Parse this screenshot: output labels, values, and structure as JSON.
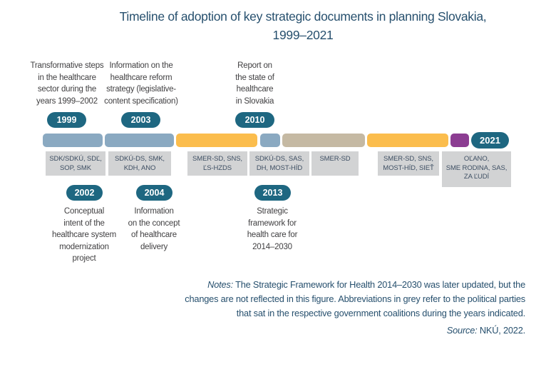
{
  "title": {
    "line1": "Timeline of adoption of key strategic documents in planning Slovakia,",
    "line2": "1999–2021"
  },
  "colors": {
    "title_text": "#27506E",
    "badge_teal": "#1E6781",
    "segment_blue": "#8AA9C1",
    "segment_orange": "#FBBD4D",
    "segment_tan": "#C5B9A3",
    "segment_purple": "#8C3D92",
    "party_box_grey": "#D2D3D4",
    "party_text": "#3E4F63",
    "annotation_text": "#414042"
  },
  "top_events": [
    {
      "year": "1999",
      "lines": [
        "Transformative steps",
        "in the healthcare",
        "sector during the",
        "years 1999–2002"
      ]
    },
    {
      "year": "2003",
      "lines": [
        "Information on the",
        "healthcare reform",
        "strategy (legislative-",
        "content specification)"
      ]
    },
    {
      "year": "2010",
      "lines": [
        "Report on",
        "the state of",
        "healthcare",
        "in Slovakia"
      ]
    }
  ],
  "bottom_events": [
    {
      "year": "2002",
      "lines": [
        "Conceptual",
        "intent of the",
        "healthcare system",
        "modernization",
        "project"
      ]
    },
    {
      "year": "2004",
      "lines": [
        "Information",
        "on the concept",
        "of healthcare",
        "delivery"
      ]
    },
    {
      "year": "2013",
      "lines": [
        "Strategic",
        "framework for",
        "health care for",
        "2014–2030"
      ]
    }
  ],
  "timeline": {
    "end_badge_label": "2021",
    "segments": [
      {
        "color": "#8AA9C1",
        "coalition": [
          "SDK/SDKÚ, SDĽ,",
          "SOP, SMK"
        ]
      },
      {
        "color": "#8AA9C1",
        "coalition": [
          "SDKÚ-DS, SMK,",
          "KDH, ANO"
        ]
      },
      {
        "color": "#FBBD4D",
        "coalition": [
          "SMER-SD, SNS,",
          "ĽS-HZDS"
        ]
      },
      {
        "color": "#8AA9C1",
        "coalition": [
          "SDKÚ-DS, SAS,",
          "DH, MOST-HÍD"
        ]
      },
      {
        "color": "#C5B9A3",
        "coalition": [
          "SMER-SD"
        ]
      },
      {
        "color": "#FBBD4D",
        "coalition": [
          "SMER-SD, SNS,",
          "MOST-HÍD, SIEŤ"
        ]
      },
      {
        "color": "#8C3D92",
        "coalition": [
          "OĽANO,",
          "SME RODINA, SAS,",
          "ZA ĽUDÍ"
        ]
      }
    ]
  },
  "notes": {
    "label": "Notes:",
    "line1_rest": " The Strategic Framework for Health 2014–2030 was later updated, but the",
    "line2": "changes are not reflected in this figure. Abbreviations in grey refer to the political parties",
    "line3": "that sat in the respective government coalitions during the years indicated."
  },
  "source": {
    "label": "Source:",
    "text": " NKÚ, 2022."
  }
}
